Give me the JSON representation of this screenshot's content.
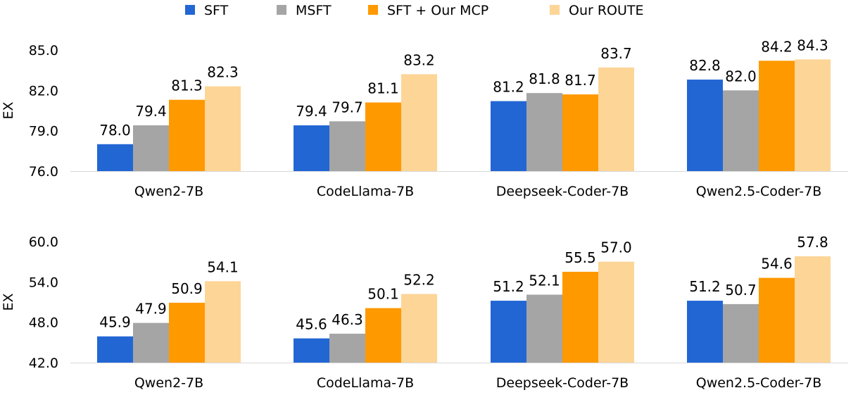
{
  "legend": [
    {
      "label": "SFT",
      "color": "#2266D4"
    },
    {
      "label": "MSFT",
      "color": "#A5A5A5"
    },
    {
      "label": "SFT + Our MCP",
      "color": "#FF9900"
    },
    {
      "label": "Our ROUTE",
      "color": "#FCD597"
    }
  ],
  "chart_data": [
    {
      "type": "bar",
      "ylabel": "EX",
      "ylim": [
        76.0,
        85.0
      ],
      "yticks": [
        "76.0",
        "79.0",
        "82.0",
        "85.0"
      ],
      "categories": [
        "Qwen2-7B",
        "CodeLlama-7B",
        "Deepseek-Coder-7B",
        "Qwen2.5-Coder-7B"
      ],
      "series": [
        {
          "name": "SFT",
          "values": [
            78.0,
            79.4,
            81.2,
            82.8
          ]
        },
        {
          "name": "MSFT",
          "values": [
            79.4,
            79.7,
            81.8,
            82.0
          ]
        },
        {
          "name": "SFT + Our MCP",
          "values": [
            81.3,
            81.1,
            81.7,
            84.2
          ]
        },
        {
          "name": "Our ROUTE",
          "values": [
            82.3,
            83.2,
            83.7,
            84.3
          ]
        }
      ]
    },
    {
      "type": "bar",
      "ylabel": "EX",
      "ylim": [
        42.0,
        60.0
      ],
      "yticks": [
        "42.0",
        "48.0",
        "54.0",
        "60.0"
      ],
      "categories": [
        "Qwen2-7B",
        "CodeLlama-7B",
        "Deepseek-Coder-7B",
        "Qwen2.5-Coder-7B"
      ],
      "series": [
        {
          "name": "SFT",
          "values": [
            45.9,
            45.6,
            51.2,
            51.2
          ]
        },
        {
          "name": "MSFT",
          "values": [
            47.9,
            46.3,
            52.1,
            50.7
          ]
        },
        {
          "name": "SFT + Our MCP",
          "values": [
            50.9,
            50.1,
            55.5,
            54.6
          ]
        },
        {
          "name": "Our ROUTE",
          "values": [
            54.1,
            52.2,
            57.0,
            57.8
          ]
        }
      ]
    }
  ]
}
